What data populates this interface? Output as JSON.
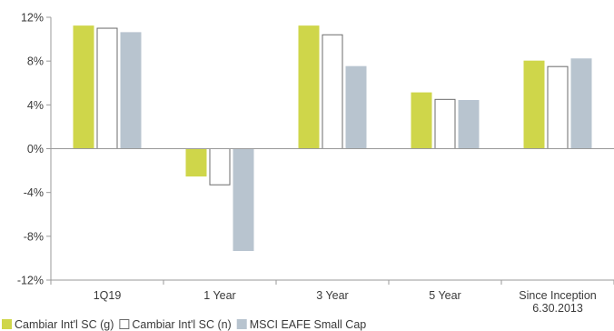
{
  "chart_data": {
    "type": "bar",
    "categories": [
      "1Q19",
      "1 Year",
      "3 Year",
      "5 Year",
      "Since Inception\n6.30.2013"
    ],
    "series": [
      {
        "name": "Cambiar Int'l SC (g)",
        "values": [
          11.2,
          -2.5,
          11.2,
          5.1,
          8.0
        ],
        "fill": "#cfd64a",
        "stroke": "#cfd64a"
      },
      {
        "name": "Cambiar Int'l SC (n)",
        "values": [
          11.0,
          -3.3,
          10.4,
          4.5,
          7.5
        ],
        "fill": "#ffffff",
        "stroke": "#6b6b6b"
      },
      {
        "name": "MSCI EAFE Small Cap",
        "values": [
          10.6,
          -9.3,
          7.5,
          4.4,
          8.2
        ],
        "fill": "#b8c4cf",
        "stroke": "#b8c4cf"
      }
    ],
    "ylim": [
      -12,
      12
    ],
    "yticks": [
      -12,
      -8,
      -4,
      0,
      4,
      8,
      12
    ],
    "ytick_labels": [
      "-12%",
      "-8%",
      "-4%",
      "0%",
      "4%",
      "8%",
      "12%"
    ],
    "grid": false,
    "legend_position": "bottom-left",
    "title": "",
    "xlabel": "",
    "ylabel": ""
  }
}
